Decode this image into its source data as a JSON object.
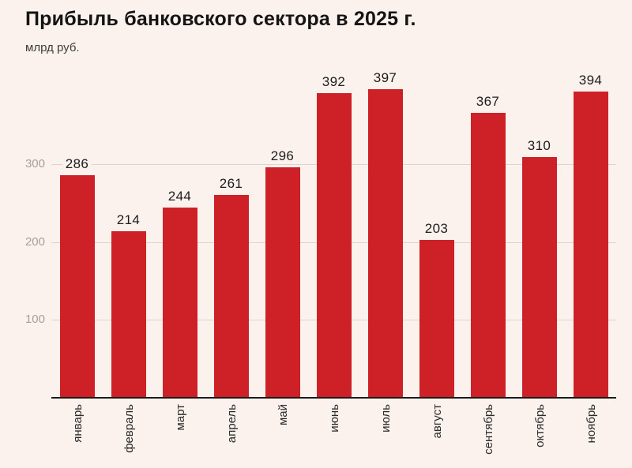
{
  "title": "Прибыль банковского сектора в 2025 г.",
  "subtitle": "млрд руб.",
  "chart_data": {
    "type": "bar",
    "title": "Прибыль банковского сектора в 2025 г.",
    "ylabel": "млрд руб.",
    "xlabel": "",
    "categories": [
      "январь",
      "февраль",
      "март",
      "апрель",
      "май",
      "июнь",
      "июль",
      "август",
      "сентябрь",
      "октябрь",
      "ноябрь"
    ],
    "values": [
      286,
      214,
      244,
      261,
      296,
      392,
      397,
      203,
      367,
      310,
      394
    ],
    "yticks": [
      100,
      200,
      300
    ],
    "ylim": [
      0,
      410
    ],
    "grid": "horizontal gridlines on",
    "legend": "none",
    "value_labels": "above each bar",
    "x_tick_rotation": -90,
    "bar_color": "#cd2127"
  },
  "colors": {
    "background": "#fbf1ed",
    "bar": "#cd2127",
    "gridline": "#ddd4d0",
    "axis": "#1a1a1a",
    "title": "#141414",
    "subtitle": "#3f3c3a",
    "ytick_label": "#a6a09c",
    "value_label": "#1d1d1d",
    "month_label": "#2b2b2b"
  }
}
